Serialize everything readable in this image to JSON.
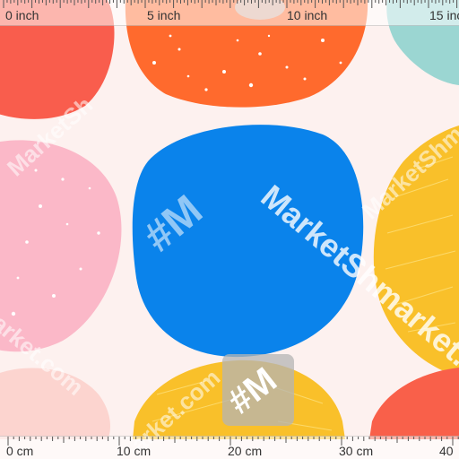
{
  "pattern": {
    "background": "#fdf1ef",
    "shapes": [
      {
        "name": "red-blob",
        "color": "#f95d4d"
      },
      {
        "name": "orange-speckled-blob",
        "color": "#ff6a2d"
      },
      {
        "name": "teal-blob",
        "color": "#9bd6d2"
      },
      {
        "name": "pink-speckled-blob",
        "color": "#fbb8c8"
      },
      {
        "name": "blue-blob",
        "color": "#0a83eb"
      },
      {
        "name": "yellow-textured-blob",
        "color": "#f9c02a"
      },
      {
        "name": "peach-blob",
        "color": "#fcd4cf"
      },
      {
        "name": "yellow-bottom-blob",
        "color": "#f9c02a"
      },
      {
        "name": "coral-bottom-blob",
        "color": "#f9604a"
      }
    ]
  },
  "ruler_top": {
    "labels": [
      "0 inch",
      "5 inch",
      "10 inch",
      "15 inch"
    ]
  },
  "ruler_bottom": {
    "labels": [
      "0 cm",
      "10 cm",
      "20 cm",
      "30 cm",
      "40"
    ]
  },
  "watermark": {
    "brand": "MarketShmarket.com",
    "brand_partial_left": "MarketSh",
    "brand_partial_bottom": "arket.com",
    "logo": "#M"
  }
}
